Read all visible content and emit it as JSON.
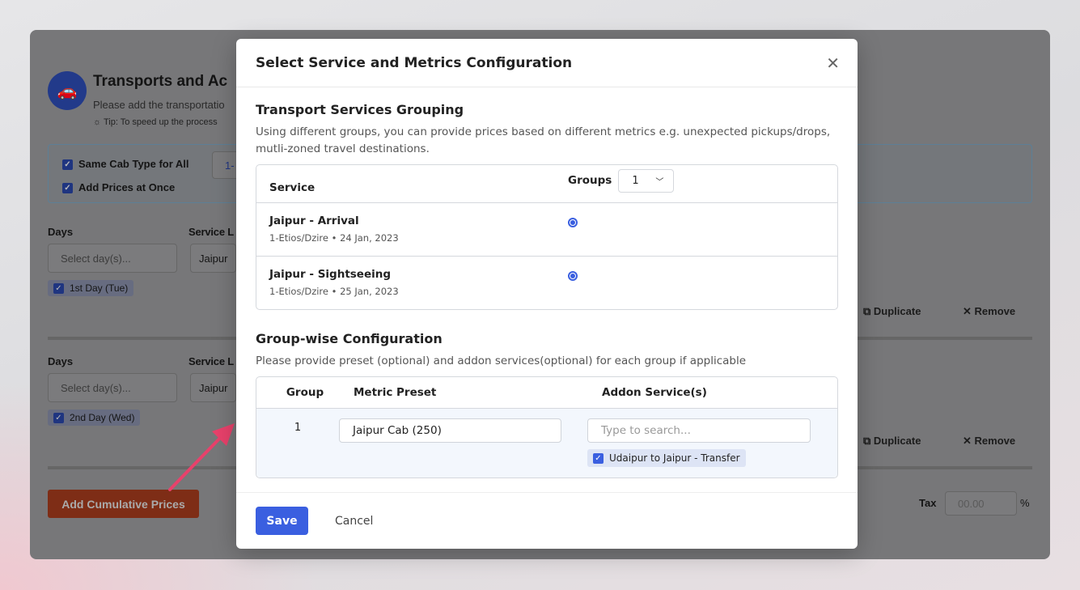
{
  "background_page": {
    "title": "Transports and Ac",
    "subtitle": "Please add the transportatio",
    "tip": "Tip: To speed up the process",
    "options": {
      "same_cab_type": "Same Cab Type for All",
      "add_prices_at_once": "Add Prices at Once",
      "cab_select_partial": "1-"
    },
    "blocks": [
      {
        "days_label": "Days",
        "days_placeholder": "Select day(s)...",
        "day_tag": "1st Day (Tue)",
        "service_label": "Service L",
        "service_value": "Jaipur",
        "duplicate": "Duplicate",
        "remove": "Remove"
      },
      {
        "days_label": "Days",
        "days_placeholder": "Select day(s)...",
        "day_tag": "2nd Day (Wed)",
        "service_label": "Service L",
        "service_value": "Jaipur",
        "duplicate": "Duplicate",
        "remove": "Remove"
      }
    ],
    "add_cumulative_prices": "Add Cumulative Prices",
    "tax_label": "Tax",
    "tax_placeholder": "00.00",
    "tax_unit": "%"
  },
  "modal": {
    "title": "Select Service and Metrics Configuration",
    "grouping": {
      "heading": "Transport Services Grouping",
      "description": "Using different groups, you can provide prices based on different metrics e.g. unexpected pickups/drops, mutli-zoned travel destinations.",
      "col_service": "Service",
      "col_groups": "Groups",
      "groups_value": "1",
      "services": [
        {
          "name": "Jaipur - Arrival",
          "meta": "1-Etios/Dzire • 24 Jan, 2023",
          "group": 1
        },
        {
          "name": "Jaipur - Sightseeing",
          "meta": "1-Etios/Dzire • 25 Jan, 2023",
          "group": 1
        }
      ]
    },
    "config": {
      "heading": "Group-wise Configuration",
      "description": "Please provide preset (optional) and addon services(optional) for each group if applicable",
      "col_group": "Group",
      "col_preset": "Metric Preset",
      "col_addon": "Addon Service(s)",
      "rows": [
        {
          "group": "1",
          "preset": "Jaipur Cab (250)",
          "addon_placeholder": "Type to search...",
          "addon_selected": "Udaipur to Jaipur - Transfer"
        }
      ]
    },
    "save": "Save",
    "cancel": "Cancel"
  },
  "colors": {
    "primary": "#3a5fe0",
    "danger": "#d0411e",
    "arrow": "#e8416b"
  }
}
